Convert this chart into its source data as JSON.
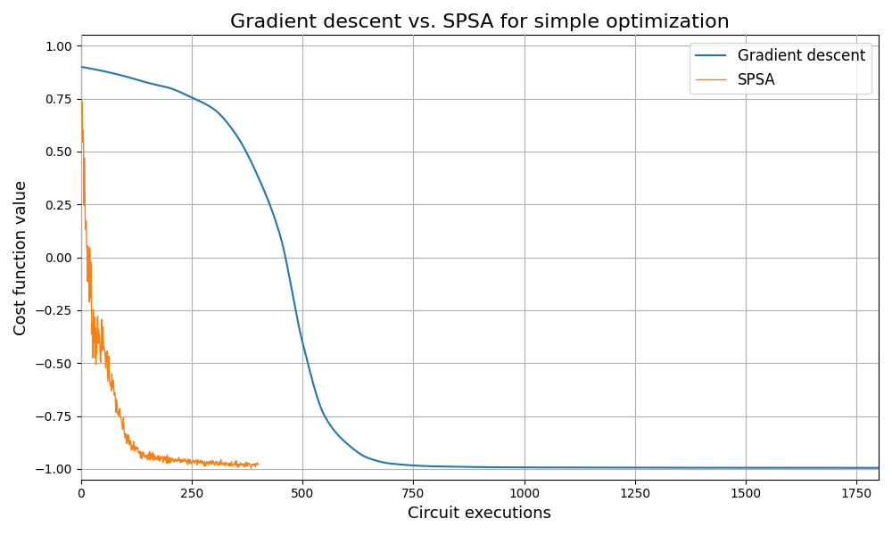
{
  "title": "Gradient descent vs. SPSA for simple optimization",
  "xlabel": "Circuit executions",
  "ylabel": "Cost function value",
  "xlim": [
    0,
    1800
  ],
  "ylim": [
    -1.05,
    1.05
  ],
  "gd_color": "#1f77b4",
  "spsa_color": "#ff7f0e",
  "gd_label": "Gradient descent",
  "spsa_label": "SPSA",
  "gd_n": 1800,
  "spsa_n": 400,
  "figsize": [
    10,
    6
  ],
  "dpi": 100,
  "title_fontsize": 16,
  "axis_label_fontsize": 13,
  "legend_fontsize": 12,
  "background_color": "#ffffff",
  "grid_color": "#b0b0b0"
}
